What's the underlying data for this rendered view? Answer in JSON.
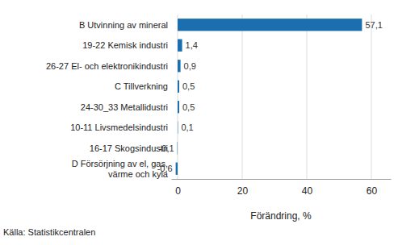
{
  "chart_data": {
    "type": "bar",
    "orientation": "horizontal",
    "categories": [
      "B Utvinning av mineral",
      "19-22 Kemisk industri",
      "26-27 El- och elektronikindustri",
      "C Tillverkning",
      "24-30_33 Metallidustri",
      "10-11 Livsmedelsindustri",
      "16-17 Skogsindustri",
      "D Försörjning av el, gas,\nvärme och kyla"
    ],
    "values": [
      57.1,
      1.4,
      0.9,
      0.5,
      0.5,
      0.1,
      -0.1,
      -0.6
    ],
    "value_labels": [
      "57,1",
      "1,4",
      "0,9",
      "0,5",
      "0,5",
      "0,1",
      "-0,1",
      "-0,6"
    ],
    "data_labels": true,
    "color": "#1b6fae",
    "xlabel": "Förändring, %",
    "xlim": [
      -2,
      66
    ],
    "xticks": [
      0,
      20,
      40,
      60
    ],
    "grid": true,
    "annotations": [
      "Källa: Statistikcentralen"
    ]
  }
}
